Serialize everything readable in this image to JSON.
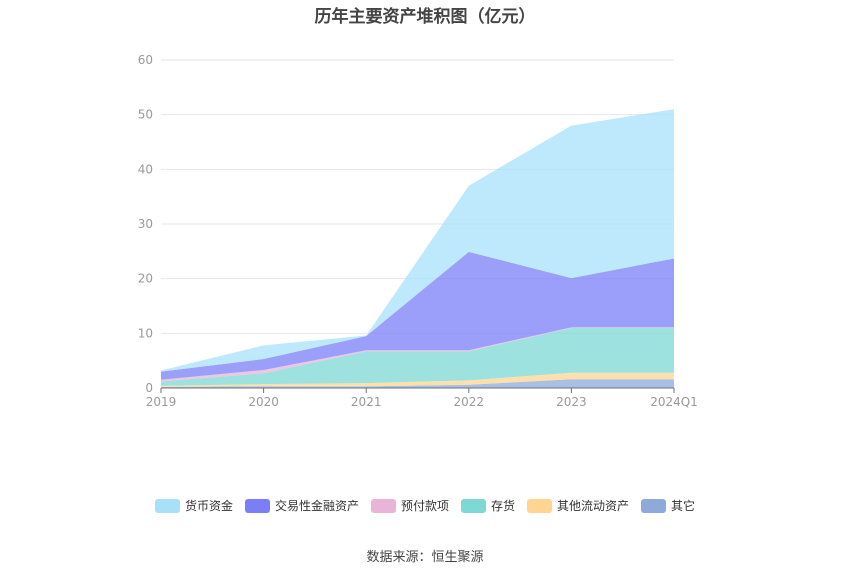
{
  "chart_data": {
    "type": "area",
    "stacked": true,
    "title": "历年主要资产堆积图（亿元）",
    "categories": [
      "2019",
      "2020",
      "2021",
      "2022",
      "2023",
      "2024Q1"
    ],
    "ylim": [
      0,
      60
    ],
    "yticks": [
      0,
      10,
      20,
      30,
      40,
      50,
      60
    ],
    "grid": true,
    "legend_position": "bottom",
    "series": [
      {
        "name": "其它",
        "color": "#8eaadb",
        "values": [
          0.2,
          0.3,
          0.3,
          0.6,
          1.6,
          1.6
        ]
      },
      {
        "name": "其他流动资产",
        "color": "#ffd591",
        "values": [
          0.2,
          0.4,
          0.6,
          0.8,
          1.2,
          1.2
        ]
      },
      {
        "name": "存货",
        "color": "#7ed8d4",
        "values": [
          0.8,
          2.0,
          5.8,
          5.3,
          8.2,
          8.2
        ]
      },
      {
        "name": "预付款项",
        "color": "#e8b4d8",
        "values": [
          0.3,
          0.6,
          0.2,
          0.2,
          0.1,
          0.1
        ]
      },
      {
        "name": "交易性金融资产",
        "color": "#7b7ff7",
        "values": [
          1.5,
          2.0,
          2.6,
          18.0,
          9.0,
          12.6
        ]
      },
      {
        "name": "货币资金",
        "color": "#a8e0f9",
        "values": [
          0.2,
          2.5,
          0.1,
          12.1,
          27.9,
          27.3
        ]
      }
    ]
  },
  "legend_order": [
    "货币资金",
    "交易性金融资产",
    "预付款项",
    "存货",
    "其他流动资产",
    "其它"
  ],
  "source": "数据来源：恒生聚源"
}
